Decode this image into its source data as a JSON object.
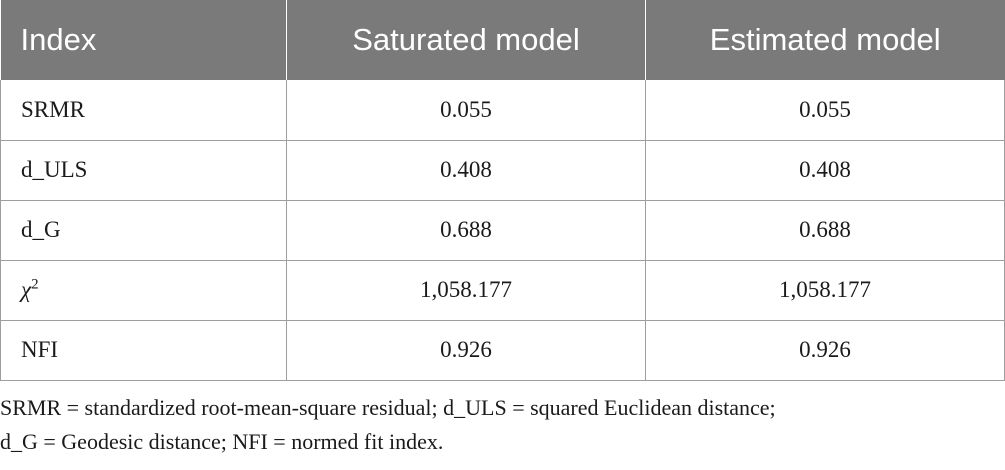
{
  "table": {
    "headers": [
      "Index",
      "Saturated model",
      "Estimated model"
    ],
    "rows": [
      {
        "index": "SRMR",
        "saturated": "0.055",
        "estimated": "0.055"
      },
      {
        "index": "d_ULS",
        "saturated": "0.408",
        "estimated": "0.408"
      },
      {
        "index": "d_G",
        "saturated": "0.688",
        "estimated": "0.688"
      },
      {
        "index": "χ",
        "index_sup": "2",
        "saturated": "1,058.177",
        "estimated": "1,058.177"
      },
      {
        "index": "NFI",
        "saturated": "0.926",
        "estimated": "0.926"
      }
    ]
  },
  "footnote": {
    "line1": "SRMR = standardized root-mean-square residual; d_ULS = squared Euclidean distance;",
    "line2": "d_G = Geodesic distance; NFI = normed fit index."
  },
  "colors": {
    "header_bg": "#7a7a7a",
    "header_text": "#ffffff",
    "border": "#9e9e9e"
  }
}
